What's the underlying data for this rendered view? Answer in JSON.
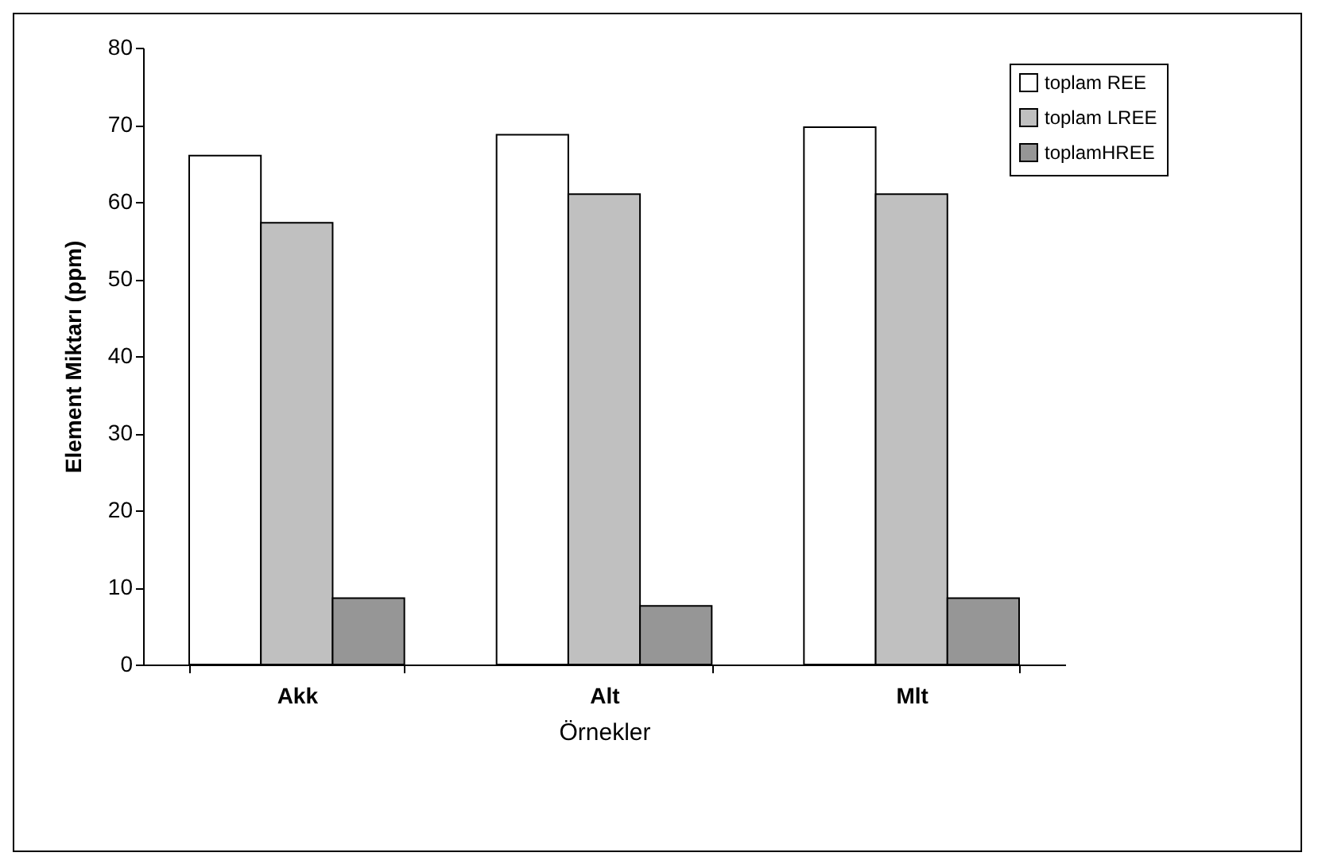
{
  "chart_data": {
    "type": "bar",
    "xlabel": "Örnekler",
    "ylabel": "Element Miktarı (ppm)",
    "categories": [
      "Akk",
      "Alt",
      "Mlt"
    ],
    "series": [
      {
        "name": "toplam REE",
        "color": "#ffffff",
        "values": [
          66.0,
          68.7,
          69.7
        ]
      },
      {
        "name": "toplam LREE",
        "color": "#c0c0c0",
        "values": [
          57.3,
          61.0,
          61.0
        ]
      },
      {
        "name": "toplamHREE",
        "color": "#969696",
        "values": [
          8.6,
          7.6,
          8.6
        ]
      }
    ],
    "ylim": [
      0,
      80
    ],
    "yticks": [
      0,
      10,
      20,
      30,
      40,
      50,
      60,
      70,
      80
    ],
    "grid": false,
    "legend": "top right"
  }
}
